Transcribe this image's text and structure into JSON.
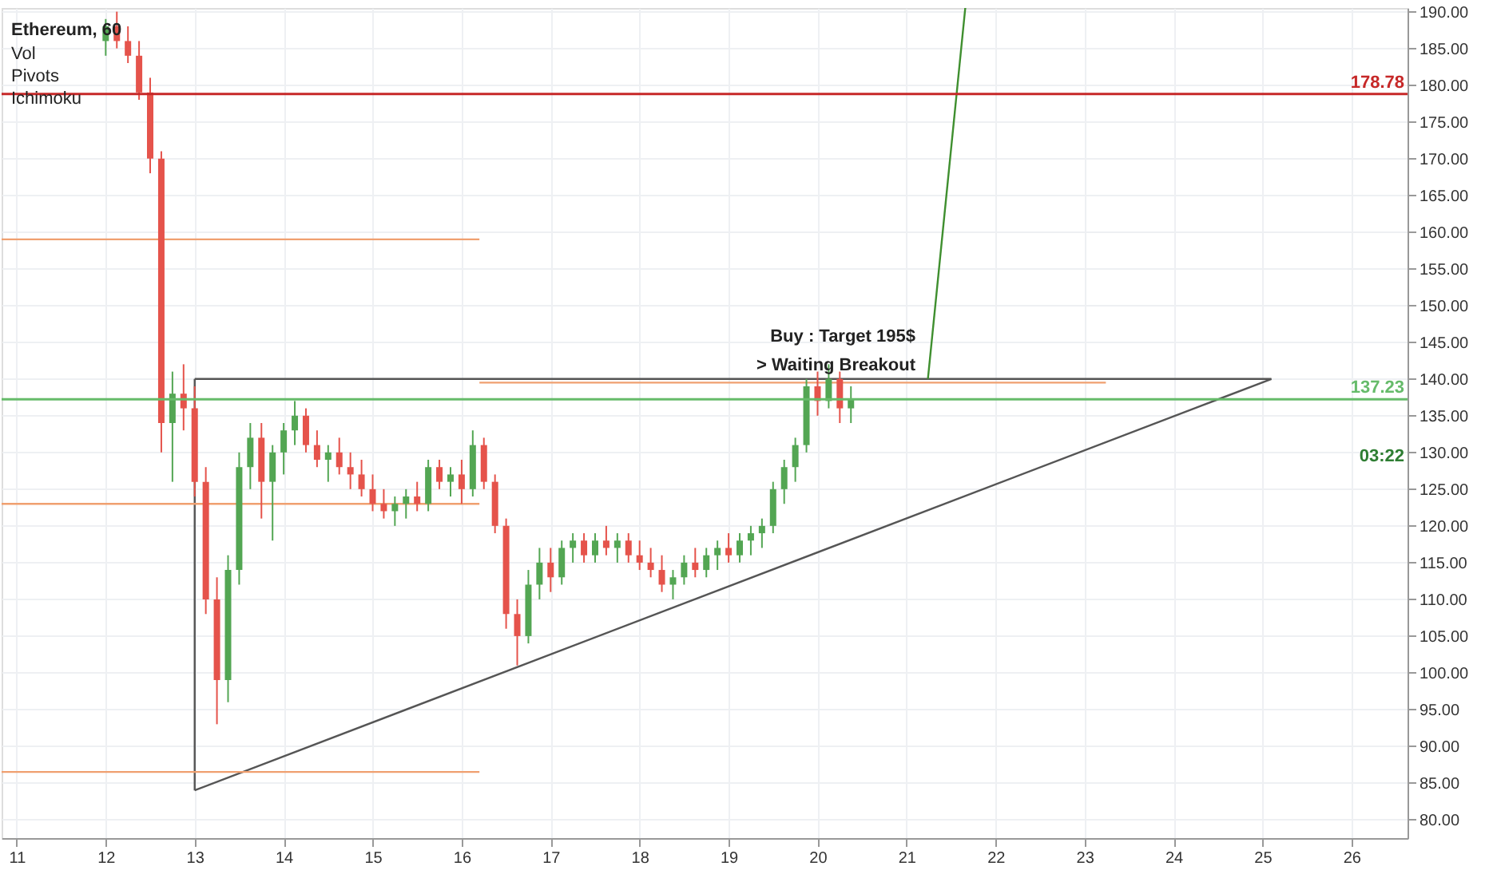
{
  "chart_data": {
    "type": "candlestick",
    "title": "Ethereum, 60",
    "x": [
      12.0,
      12.125,
      12.25,
      12.375,
      12.5,
      12.625,
      12.75,
      12.875,
      13.0,
      13.125,
      13.25,
      13.375,
      13.5,
      13.625,
      13.75,
      13.875,
      14.0,
      14.125,
      14.25,
      14.375,
      14.5,
      14.625,
      14.75,
      14.875,
      15.0,
      15.125,
      15.25,
      15.375,
      15.5,
      15.625,
      15.75,
      15.875,
      16.0,
      16.125,
      16.25,
      16.375,
      16.5,
      16.625,
      16.75,
      16.875,
      17.0,
      17.125,
      17.25,
      17.375,
      17.5,
      17.625,
      17.75,
      17.875,
      18.0,
      18.125,
      18.25,
      18.375,
      18.5,
      18.625,
      18.75,
      18.875,
      19.0,
      19.125,
      19.25,
      19.375,
      19.5,
      19.625,
      19.75,
      19.875,
      20.0,
      20.125,
      20.25,
      20.375
    ],
    "ohlc": [
      [
        186,
        189,
        184,
        188
      ],
      [
        188,
        190,
        185,
        186
      ],
      [
        186,
        188,
        183,
        184
      ],
      [
        184,
        186,
        178,
        179
      ],
      [
        179,
        181,
        168,
        170
      ],
      [
        170,
        171,
        130,
        134
      ],
      [
        134,
        141,
        126,
        138
      ],
      [
        138,
        142,
        133,
        136
      ],
      [
        136,
        139,
        124,
        126
      ],
      [
        126,
        128,
        108,
        110
      ],
      [
        110,
        113,
        93,
        99
      ],
      [
        99,
        116,
        96,
        114
      ],
      [
        114,
        130,
        112,
        128
      ],
      [
        128,
        134,
        125,
        132
      ],
      [
        132,
        134,
        121,
        126
      ],
      [
        126,
        131,
        118,
        130
      ],
      [
        130,
        134,
        127,
        133
      ],
      [
        133,
        137,
        131,
        135
      ],
      [
        135,
        136,
        130,
        131
      ],
      [
        131,
        133,
        128,
        129
      ],
      [
        129,
        131,
        126,
        130
      ],
      [
        130,
        132,
        127,
        128
      ],
      [
        128,
        130,
        125,
        127
      ],
      [
        127,
        129,
        124,
        125
      ],
      [
        125,
        127,
        122,
        123
      ],
      [
        123,
        125,
        121,
        122
      ],
      [
        122,
        124,
        120,
        123
      ],
      [
        123,
        125,
        121,
        124
      ],
      [
        124,
        126,
        122,
        123
      ],
      [
        123,
        129,
        122,
        128
      ],
      [
        128,
        129,
        125,
        126
      ],
      [
        126,
        128,
        124,
        127
      ],
      [
        127,
        129,
        123,
        125
      ],
      [
        125,
        133,
        124,
        131
      ],
      [
        131,
        132,
        125,
        126
      ],
      [
        126,
        127,
        119,
        120
      ],
      [
        120,
        121,
        106,
        108
      ],
      [
        108,
        110,
        101,
        105
      ],
      [
        105,
        114,
        104,
        112
      ],
      [
        112,
        117,
        110,
        115
      ],
      [
        115,
        117,
        111,
        113
      ],
      [
        113,
        118,
        112,
        117
      ],
      [
        117,
        119,
        115,
        118
      ],
      [
        118,
        119,
        115,
        116
      ],
      [
        116,
        119,
        115,
        118
      ],
      [
        118,
        120,
        116,
        117
      ],
      [
        117,
        119,
        115,
        118
      ],
      [
        118,
        119,
        115,
        116
      ],
      [
        116,
        118,
        114,
        115
      ],
      [
        115,
        117,
        113,
        114
      ],
      [
        114,
        116,
        111,
        112
      ],
      [
        112,
        114,
        110,
        113
      ],
      [
        113,
        116,
        112,
        115
      ],
      [
        115,
        117,
        113,
        114
      ],
      [
        114,
        117,
        113,
        116
      ],
      [
        116,
        118,
        114,
        117
      ],
      [
        117,
        119,
        115,
        116
      ],
      [
        116,
        119,
        115,
        118
      ],
      [
        118,
        120,
        116,
        119
      ],
      [
        119,
        121,
        117,
        120
      ],
      [
        120,
        126,
        119,
        125
      ],
      [
        125,
        129,
        123,
        128
      ],
      [
        128,
        132,
        126,
        131
      ],
      [
        131,
        140,
        130,
        139
      ],
      [
        139,
        141,
        135,
        137
      ],
      [
        137,
        142,
        136,
        140
      ],
      [
        140,
        141,
        134,
        136
      ],
      [
        136,
        139,
        134,
        137.23
      ]
    ],
    "colors": [
      "#53a653",
      "#e5534b",
      "#e5534b",
      "#e5534b",
      "#e5534b",
      "#e5534b",
      "#53a653",
      "#e5534b",
      "#e5534b",
      "#e5534b",
      "#e5534b",
      "#53a653",
      "#53a653",
      "#53a653",
      "#e5534b",
      "#53a653",
      "#53a653",
      "#53a653",
      "#e5534b",
      "#e5534b",
      "#53a653",
      "#e5534b",
      "#e5534b",
      "#e5534b",
      "#e5534b",
      "#e5534b",
      "#53a653",
      "#53a653",
      "#e5534b",
      "#53a653",
      "#e5534b",
      "#53a653",
      "#e5534b",
      "#53a653",
      "#e5534b",
      "#e5534b",
      "#e5534b",
      "#e5534b",
      "#53a653",
      "#53a653",
      "#e5534b",
      "#53a653",
      "#53a653",
      "#e5534b",
      "#53a653",
      "#e5534b",
      "#53a653",
      "#e5534b",
      "#e5534b",
      "#e5534b",
      "#e5534b",
      "#53a653",
      "#53a653",
      "#e5534b",
      "#53a653",
      "#53a653",
      "#e5534b",
      "#53a653",
      "#53a653",
      "#53a653",
      "#53a653",
      "#53a653",
      "#53a653",
      "#53a653",
      "#e5534b",
      "#53a653",
      "#e5534b",
      "#53a653"
    ],
    "series": [
      {
        "type": "line",
        "color": "#555555",
        "x": [
          13,
          25.1
        ],
        "values": [
          84,
          140
        ]
      },
      {
        "type": "line",
        "color": "#555555",
        "x": [
          13,
          25.1
        ],
        "values": [
          140,
          140
        ]
      },
      {
        "type": "line",
        "color": "#555555",
        "x": [
          13,
          13
        ],
        "values": [
          84,
          140
        ]
      },
      {
        "type": "line",
        "color": "#3f8f2f",
        "x": [
          21.24,
          21.66
        ],
        "values": [
          140,
          190.5
        ]
      },
      {
        "type": "line",
        "color": "#f0a070",
        "x": [
          10.83,
          16.2
        ],
        "values": [
          159,
          159
        ]
      },
      {
        "type": "line",
        "color": "#f0a070",
        "x": [
          10.83,
          16.2
        ],
        "values": [
          123,
          123
        ]
      },
      {
        "type": "line",
        "color": "#f0a070",
        "x": [
          10.83,
          16.2
        ],
        "values": [
          86.5,
          86.5
        ]
      },
      {
        "type": "line",
        "color": "#f0a070",
        "x": [
          16.2,
          23.24
        ],
        "values": [
          139.5,
          139.5
        ]
      }
    ],
    "ref_lines": [
      {
        "axis": "y",
        "value": 178.78,
        "label": "178.78",
        "color": "#c62828"
      },
      {
        "axis": "y",
        "value": 137.23,
        "label": "137.23",
        "color": "#66bb6a"
      }
    ],
    "annotations": [
      "Vol",
      "Pivots",
      "Ichimoku",
      "Buy : Target 195$",
      "> Waiting Breakout",
      "03:22"
    ],
    "xlim": [
      10.83,
      26.63
    ],
    "xticks": [
      11,
      12,
      13,
      14,
      15,
      16,
      17,
      18,
      19,
      20,
      21,
      22,
      23,
      24,
      25,
      26
    ],
    "ylim": [
      77.5,
      190.5
    ],
    "yticks": [
      {
        "value": 80,
        "label": "80.00"
      },
      {
        "value": 85,
        "label": "85.00"
      },
      {
        "value": 90,
        "label": "90.00"
      },
      {
        "value": 95,
        "label": "95.00"
      },
      {
        "value": 100,
        "label": "100.00"
      },
      {
        "value": 105,
        "label": "105.00"
      },
      {
        "value": 110,
        "label": "110.00"
      },
      {
        "value": 115,
        "label": "115.00"
      },
      {
        "value": 120,
        "label": "120.00"
      },
      {
        "value": 125,
        "label": "125.00"
      },
      {
        "value": 130,
        "label": "130.00"
      },
      {
        "value": 135,
        "label": "135.00"
      },
      {
        "value": 140,
        "label": "140.00"
      },
      {
        "value": 145,
        "label": "145.00"
      },
      {
        "value": 150,
        "label": "150.00"
      },
      {
        "value": 155,
        "label": "155.00"
      },
      {
        "value": 160,
        "label": "160.00"
      },
      {
        "value": 165,
        "label": "165.00"
      },
      {
        "value": 170,
        "label": "170.00"
      },
      {
        "value": 175,
        "label": "175.00"
      },
      {
        "value": 180,
        "label": "180.00"
      },
      {
        "value": 185,
        "label": "185.00"
      },
      {
        "value": 190,
        "label": "190.00"
      }
    ],
    "grid": true
  }
}
